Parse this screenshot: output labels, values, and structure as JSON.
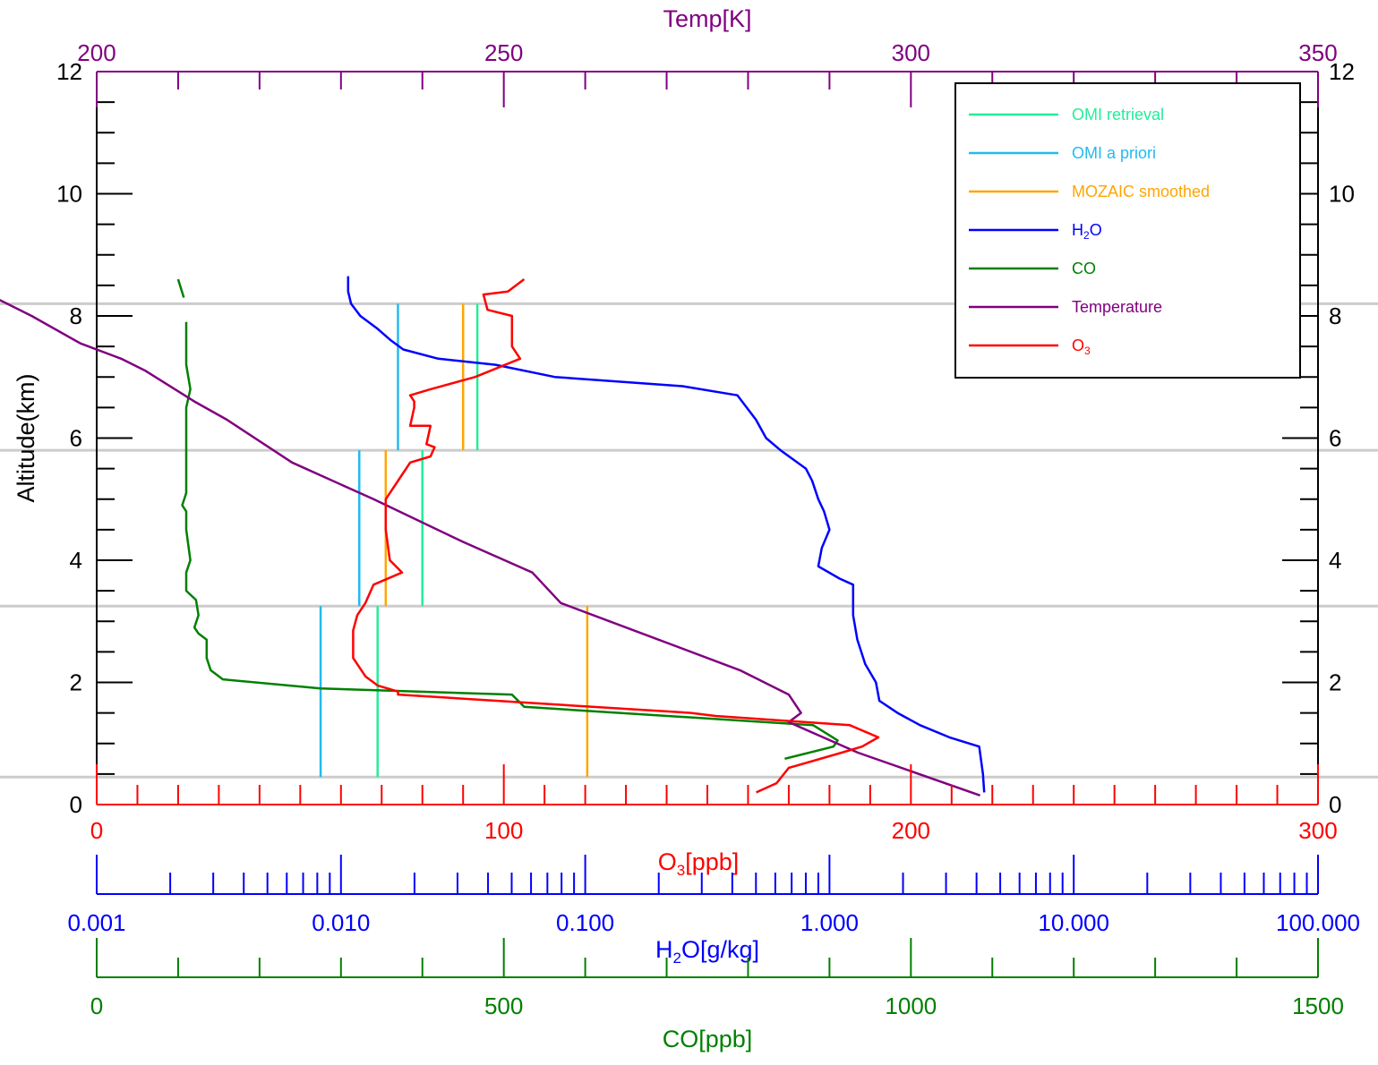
{
  "chart_data": {
    "type": "line",
    "axes": {
      "altitude": {
        "label": "Altitude(km)",
        "range": [
          0,
          12
        ],
        "ticks": [
          "0",
          "2",
          "4",
          "6",
          "8",
          "10",
          "12"
        ],
        "color": "#000000"
      },
      "o3": {
        "label": "O3[ppb]",
        "label_main": "O",
        "label_sub": "3",
        "label_rest": "[ppb]",
        "range": [
          0,
          300
        ],
        "ticks": [
          "0",
          "100",
          "200",
          "300"
        ],
        "color": "#ff0000"
      },
      "temp": {
        "label": "Temp[K]",
        "range": [
          200,
          350
        ],
        "ticks": [
          "200",
          "250",
          "300",
          "350"
        ],
        "color": "#800080"
      },
      "h2o": {
        "label": "H2O[g/kg]",
        "label_main": "H",
        "label_sub": "2",
        "label_rest": "O[g/kg]",
        "range": [
          0.001,
          100
        ],
        "scale": "log",
        "ticks": [
          "0.001",
          "0.010",
          "0.100",
          "1.000",
          "10.000",
          "100.000"
        ],
        "color": "#0000ff"
      },
      "co": {
        "label": "CO[ppb]",
        "range": [
          0,
          1500
        ],
        "ticks": [
          "0",
          "500",
          "1000",
          "1500"
        ],
        "color": "#008000"
      }
    },
    "legend": {
      "placement": "top-right",
      "entries": [
        {
          "label": "OMI retrieval",
          "color": "#22ee99"
        },
        {
          "label": "OMI a priori",
          "color": "#22bbee"
        },
        {
          "label": "MOZAIC smoothed",
          "color": "#ffa500"
        },
        {
          "label": "H2O",
          "main": "H",
          "sub": "2",
          "rest": "O",
          "color": "#0000ff"
        },
        {
          "label": "CO",
          "color": "#008000"
        },
        {
          "label": "Temperature",
          "color": "#800080"
        },
        {
          "label": "O3",
          "main": "O",
          "sub": "3",
          "rest": "",
          "color": "#ff0000"
        }
      ]
    },
    "layer_boundaries_km": [
      0.45,
      3.25,
      5.8,
      8.2
    ],
    "series": [
      {
        "name": "OMI retrieval",
        "axis": "o3",
        "color": "#22ee99",
        "kind": "step",
        "layers": [
          {
            "bottom": 0.45,
            "top": 3.25,
            "value": 69
          },
          {
            "bottom": 3.25,
            "top": 5.8,
            "value": 80
          },
          {
            "bottom": 5.8,
            "top": 8.2,
            "value": 93.5
          }
        ]
      },
      {
        "name": "OMI a priori",
        "axis": "o3",
        "color": "#22bbee",
        "kind": "step",
        "layers": [
          {
            "bottom": 0.45,
            "top": 3.25,
            "value": 55
          },
          {
            "bottom": 3.25,
            "top": 5.8,
            "value": 64.5
          },
          {
            "bottom": 5.8,
            "top": 8.2,
            "value": 74
          }
        ]
      },
      {
        "name": "MOZAIC smoothed",
        "axis": "o3",
        "color": "#ffa500",
        "kind": "step",
        "layers": [
          {
            "bottom": 0.45,
            "top": 3.25,
            "value": 120.5
          },
          {
            "bottom": 3.25,
            "top": 5.8,
            "value": 71
          },
          {
            "bottom": 5.8,
            "top": 8.2,
            "value": 90
          }
        ]
      },
      {
        "name": "H2O",
        "axis": "h2o",
        "color": "#0000ff",
        "kind": "profile",
        "points": [
          [
            4.3,
            0.2
          ],
          [
            4.25,
            0.5
          ],
          [
            4.1,
            0.95
          ],
          [
            3.1,
            1.1
          ],
          [
            2.35,
            1.3
          ],
          [
            1.9,
            1.5
          ],
          [
            1.6,
            1.7
          ],
          [
            1.55,
            2.0
          ],
          [
            1.4,
            2.3
          ],
          [
            1.3,
            2.7
          ],
          [
            1.25,
            3.1
          ],
          [
            1.25,
            3.6
          ],
          [
            1.1,
            3.7
          ],
          [
            0.9,
            3.9
          ],
          [
            0.93,
            4.2
          ],
          [
            1.0,
            4.5
          ],
          [
            0.95,
            4.8
          ],
          [
            0.9,
            5.0
          ],
          [
            0.85,
            5.3
          ],
          [
            0.8,
            5.5
          ],
          [
            0.63,
            5.8
          ],
          [
            0.55,
            6.0
          ],
          [
            0.5,
            6.3
          ],
          [
            0.42,
            6.7
          ],
          [
            0.25,
            6.85
          ],
          [
            0.075,
            7.0
          ],
          [
            0.043,
            7.2
          ],
          [
            0.025,
            7.3
          ],
          [
            0.018,
            7.45
          ],
          [
            0.016,
            7.6
          ],
          [
            0.014,
            7.8
          ],
          [
            0.012,
            8.0
          ],
          [
            0.011,
            8.2
          ],
          [
            0.0107,
            8.4
          ],
          [
            0.0107,
            8.65
          ]
        ]
      },
      {
        "name": "CO",
        "axis": "co",
        "color": "#008000",
        "kind": "profile",
        "segments": [
          [
            [
              845,
              0.75
            ],
            [
              905,
              0.95
            ],
            [
              910,
              1.05
            ],
            [
              880,
              1.3
            ],
            [
              525,
              1.6
            ],
            [
              510,
              1.8
            ],
            [
              275,
              1.9
            ],
            [
              155,
              2.05
            ],
            [
              140,
              2.2
            ],
            [
              135,
              2.4
            ],
            [
              135,
              2.6
            ],
            [
              135,
              2.7
            ],
            [
              125,
              2.8
            ],
            [
              120,
              2.9
            ],
            [
              125,
              3.1
            ],
            [
              122,
              3.35
            ],
            [
              110,
              3.5
            ],
            [
              110,
              3.8
            ],
            [
              115,
              4.0
            ],
            [
              110,
              4.5
            ],
            [
              110,
              4.8
            ],
            [
              105,
              4.9
            ],
            [
              110,
              5.1
            ],
            [
              110,
              5.5
            ],
            [
              110,
              6.0
            ],
            [
              110,
              6.5
            ],
            [
              115,
              6.8
            ],
            [
              110,
              7.2
            ],
            [
              110,
              7.5
            ],
            [
              110,
              7.9
            ]
          ],
          [
            [
              107,
              8.3
            ],
            [
              100,
              8.6
            ]
          ]
        ]
      },
      {
        "name": "Temperature",
        "axis": "temp",
        "color": "#800080",
        "kind": "profile",
        "points": [
          [
            308.5,
            0.15
          ],
          [
            293.5,
            0.85
          ],
          [
            285,
            1.35
          ],
          [
            286.5,
            1.5
          ],
          [
            285,
            1.8
          ],
          [
            279,
            2.2
          ],
          [
            267,
            2.8
          ],
          [
            257,
            3.3
          ],
          [
            253.5,
            3.8
          ],
          [
            245,
            4.3
          ],
          [
            234,
            5.0
          ],
          [
            224,
            5.6
          ],
          [
            216,
            6.3
          ],
          [
            212,
            6.6
          ],
          [
            206,
            7.1
          ],
          [
            203,
            7.3
          ],
          [
            198,
            7.55
          ],
          [
            192,
            8.0
          ],
          [
            187.5,
            8.3
          ],
          [
            183,
            8.6
          ]
        ]
      },
      {
        "name": "O3",
        "axis": "o3",
        "color": "#ff0000",
        "kind": "profile",
        "points": [
          [
            162,
            0.2
          ],
          [
            167,
            0.35
          ],
          [
            170,
            0.6
          ],
          [
            183,
            0.85
          ],
          [
            188,
            0.95
          ],
          [
            192,
            1.1
          ],
          [
            185,
            1.3
          ],
          [
            152,
            1.45
          ],
          [
            146,
            1.5
          ],
          [
            110,
            1.65
          ],
          [
            74,
            1.8
          ],
          [
            74,
            1.85
          ],
          [
            69,
            1.95
          ],
          [
            66,
            2.1
          ],
          [
            63,
            2.4
          ],
          [
            63,
            2.85
          ],
          [
            64,
            3.1
          ],
          [
            66,
            3.3
          ],
          [
            68,
            3.6
          ],
          [
            75,
            3.8
          ],
          [
            72,
            4.0
          ],
          [
            71,
            4.5
          ],
          [
            71,
            5.0
          ],
          [
            75,
            5.4
          ],
          [
            77,
            5.6
          ],
          [
            82,
            5.7
          ],
          [
            83,
            5.85
          ],
          [
            81,
            5.9
          ],
          [
            82,
            6.2
          ],
          [
            77,
            6.2
          ],
          [
            78,
            6.5
          ],
          [
            78,
            6.6
          ],
          [
            77,
            6.7
          ],
          [
            82,
            6.8
          ],
          [
            93,
            7.0
          ],
          [
            104,
            7.3
          ],
          [
            102,
            7.5
          ],
          [
            102,
            7.75
          ],
          [
            102,
            8.0
          ],
          [
            96,
            8.1
          ],
          [
            95,
            8.35
          ],
          [
            101,
            8.4
          ],
          [
            105,
            8.6
          ]
        ]
      }
    ]
  }
}
